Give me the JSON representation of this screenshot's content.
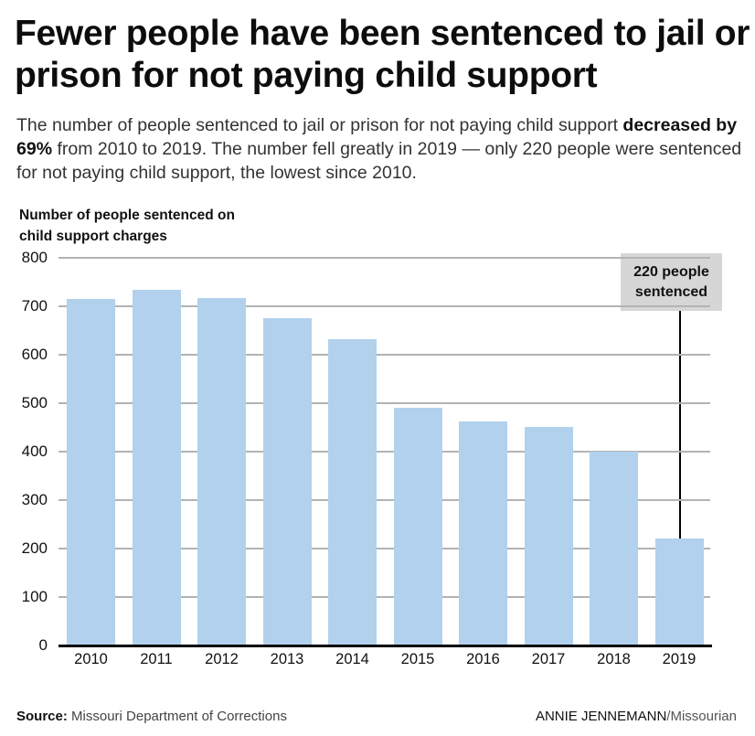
{
  "header": {
    "title": "Fewer people have been sentenced to jail or prison for not paying child support",
    "subtitle_pre": "The number of people sentenced to jail or prison for not paying child support ",
    "subtitle_bold": "decreased by 69%",
    "subtitle_post": " from 2010 to 2019. The number fell greatly in 2019 — only 220 people were sentenced for not paying child support, the lowest since 2010."
  },
  "footer": {
    "source_label": "Source:",
    "source_text": " Missouri Department of Corrections",
    "credit_name": "ANNIE JENNEMANN",
    "credit_pub": "/Missourian"
  },
  "colors": {
    "bar": "#b1d1ed",
    "annotation_bg": "#d6d6d6",
    "grid": "#b3b3b3"
  },
  "chart_data": {
    "type": "bar",
    "title": "Fewer people have been sentenced to jail or prison for not paying child support",
    "ylabel": "Number of people sentenced on child support charges",
    "xlabel": "",
    "ylim": [
      0,
      800
    ],
    "yticks": [
      0,
      100,
      200,
      300,
      400,
      500,
      600,
      700,
      800
    ],
    "grid": true,
    "categories": [
      "2010",
      "2011",
      "2012",
      "2013",
      "2014",
      "2015",
      "2016",
      "2017",
      "2018",
      "2019"
    ],
    "values": [
      715,
      734,
      717,
      676,
      632,
      491,
      463,
      451,
      400,
      220
    ],
    "annotations": [
      {
        "category": "2019",
        "text": "220 people sentenced"
      }
    ]
  }
}
